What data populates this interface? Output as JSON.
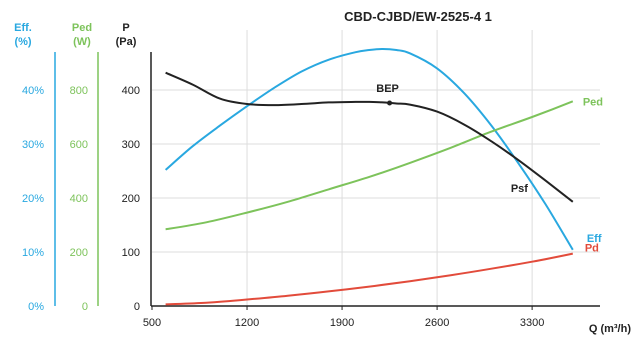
{
  "chart_data": {
    "type": "line",
    "title": "CBD-CJBD/EW-2525-4 1",
    "xlabel": "Q (m³/h)",
    "x_ticks": [
      "500",
      "1200",
      "1900",
      "2600",
      "3300"
    ],
    "xlim": [
      500,
      3800
    ],
    "axes": {
      "eff": {
        "label_line1": "Eff.",
        "label_line2": "(%)",
        "ticks": [
          "0%",
          "10%",
          "20%",
          "30%",
          "40%"
        ],
        "range": [
          0,
          40
        ],
        "color": "#29a8e0"
      },
      "ped": {
        "label_line1": "Ped",
        "label_line2": "(W)",
        "ticks": [
          "0",
          "200",
          "400",
          "600",
          "800"
        ],
        "range": [
          0,
          800
        ],
        "color": "#7dc35b"
      },
      "p": {
        "label_line1": "P",
        "label_line2": "(Pa)",
        "ticks": [
          "0",
          "100",
          "200",
          "300",
          "400"
        ],
        "range": [
          0,
          400
        ],
        "color": "#222222"
      }
    },
    "grid": true,
    "series": [
      {
        "name": "Eff",
        "axis": "eff",
        "color": "#29a8e0",
        "x": [
          600,
          800,
          1000,
          1200,
          1400,
          1600,
          1800,
          2000,
          2100,
          2200,
          2300,
          2400,
          2600,
          2800,
          3000,
          3200,
          3400,
          3600
        ],
        "y": [
          25.2,
          29.6,
          33.4,
          37,
          40.4,
          43.4,
          45.6,
          47,
          47.4,
          47.6,
          47.4,
          46.8,
          44,
          39.4,
          33.4,
          26.4,
          18.8,
          10.4
        ]
      },
      {
        "name": "Ped",
        "axis": "ped",
        "color": "#7dc35b",
        "x": [
          600,
          900,
          1200,
          1500,
          1800,
          2100,
          2400,
          2700,
          3000,
          3300,
          3600
        ],
        "y": [
          284,
          310,
          346,
          386,
          432,
          478,
          530,
          586,
          646,
          700,
          758
        ]
      },
      {
        "name": "Psf",
        "axis": "p",
        "color": "#222222",
        "x": [
          600,
          800,
          1000,
          1200,
          1400,
          1600,
          1800,
          2000,
          2100,
          2200,
          2300,
          2400,
          2600,
          2800,
          3000,
          3200,
          3400,
          3600
        ],
        "y": [
          432,
          410,
          384,
          374,
          372,
          374,
          377,
          378,
          378,
          377,
          375,
          373,
          360,
          336,
          305,
          270,
          232,
          193
        ]
      },
      {
        "name": "Pd",
        "axis": "p",
        "color": "#e24b3b",
        "x": [
          600,
          900,
          1200,
          1500,
          1800,
          2100,
          2400,
          2700,
          3000,
          3300,
          3600
        ],
        "y": [
          3,
          6,
          12,
          19,
          27,
          36,
          46,
          57,
          69,
          82,
          97
        ]
      }
    ],
    "annotations": [
      {
        "label": "BEP",
        "x": 2250,
        "y": 376,
        "axis": "p"
      }
    ]
  }
}
